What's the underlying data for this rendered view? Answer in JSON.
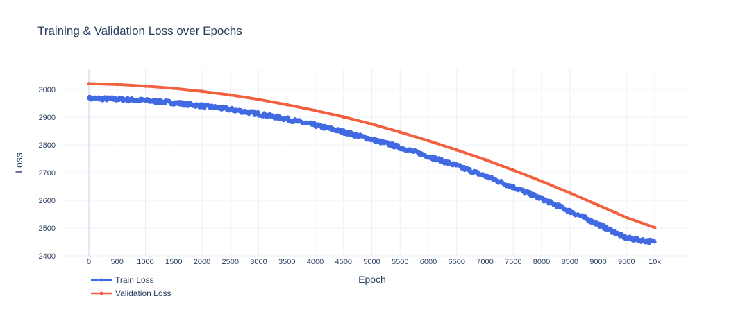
{
  "chart_data": {
    "type": "line",
    "title": "Training & Validation Loss over Epochs",
    "xlabel": "Epoch",
    "ylabel": "Loss",
    "xlim": [
      0,
      10000
    ],
    "ylim": [
      2400,
      3030
    ],
    "x_ticks": [
      0,
      500,
      1000,
      1500,
      2000,
      2500,
      3000,
      3500,
      4000,
      4500,
      5000,
      5500,
      6000,
      6500,
      7000,
      7500,
      8000,
      8500,
      9000,
      9500,
      10000
    ],
    "x_tick_labels": [
      "0",
      "500",
      "1000",
      "1500",
      "2000",
      "2500",
      "3000",
      "3500",
      "4000",
      "4500",
      "5000",
      "5500",
      "6000",
      "6500",
      "7000",
      "7500",
      "8000",
      "8500",
      "9000",
      "9500",
      "10k"
    ],
    "y_ticks": [
      2400,
      2500,
      2600,
      2700,
      2800,
      2900,
      3000
    ],
    "grid": true,
    "legend_position": "bottom-left",
    "series": [
      {
        "name": "Train Loss",
        "color": "#4169e1",
        "x": [
          0,
          500,
          1000,
          1500,
          2000,
          2500,
          3000,
          3500,
          4000,
          4500,
          5000,
          5500,
          6000,
          6500,
          7000,
          7500,
          8000,
          8500,
          9000,
          9500,
          10000
        ],
        "y": [
          2968,
          2965,
          2960,
          2952,
          2941,
          2928,
          2912,
          2893,
          2871,
          2847,
          2820,
          2791,
          2759,
          2725,
          2688,
          2648,
          2606,
          2561,
          2514,
          2464,
          2450
        ],
        "noise": 6
      },
      {
        "name": "Validation Loss",
        "color": "#f2603f",
        "x": [
          0,
          500,
          1000,
          1500,
          2000,
          2500,
          3000,
          3500,
          4000,
          4500,
          5000,
          5500,
          6000,
          6500,
          7000,
          7500,
          8000,
          8500,
          9000,
          9500,
          10000
        ],
        "y": [
          3021,
          3018,
          3012,
          3004,
          2993,
          2980,
          2964,
          2945,
          2924,
          2901,
          2875,
          2846,
          2815,
          2782,
          2747,
          2709,
          2669,
          2627,
          2583,
          2538,
          2502
        ],
        "noise": 0
      }
    ]
  }
}
